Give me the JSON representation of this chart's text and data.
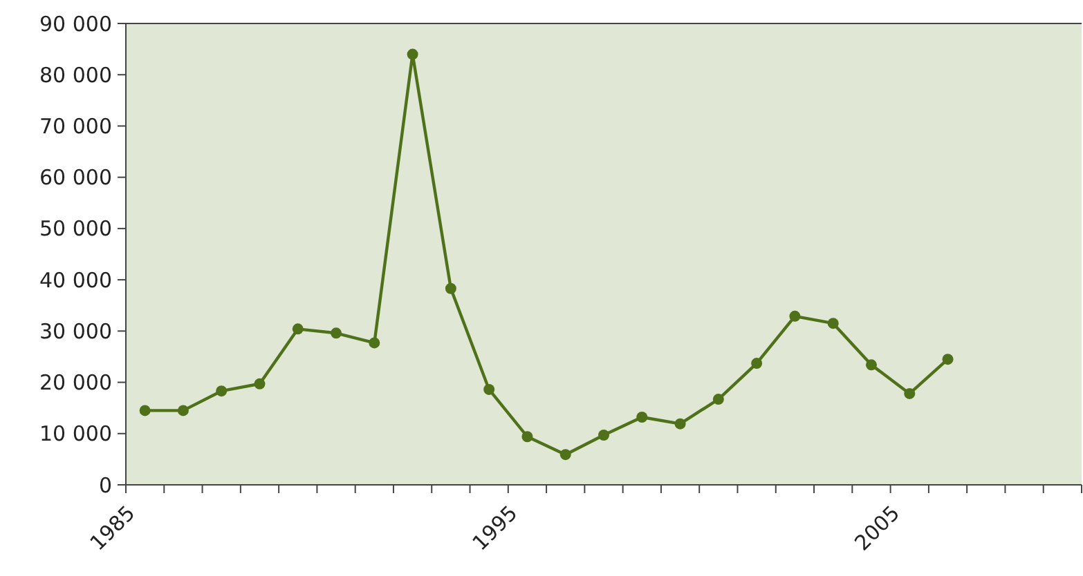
{
  "chart_data": {
    "type": "line",
    "x": [
      1985.5,
      1986.5,
      1987.5,
      1988.5,
      1989.5,
      1990.5,
      1991.5,
      1992.5,
      1993.5,
      1994.5,
      1995.5,
      1996.5,
      1997.5,
      1998.5,
      1999.5,
      2000.5,
      2001.5,
      2002.5,
      2003.5,
      2004.5,
      2005.5,
      2006.5
    ],
    "series": [
      {
        "color": "#4e7119",
        "values": [
          14500,
          14500,
          18300,
          19700,
          30400,
          29600,
          27700,
          84000,
          38300,
          18600,
          9400,
          5900,
          9700,
          13200,
          11900,
          16700,
          23700,
          32900,
          31500,
          23400,
          17800,
          24500
        ]
      }
    ],
    "xlim": [
      1985,
      2010
    ],
    "xticks": [
      1985,
      {
        "value": 1986,
        "label": null
      },
      {
        "value": 1987,
        "label": null
      },
      {
        "value": 1988,
        "label": null
      },
      {
        "value": 1989,
        "label": null
      },
      {
        "value": 1990,
        "label": null
      },
      {
        "value": 1991,
        "label": null
      },
      {
        "value": 1992,
        "label": null
      },
      {
        "value": 1993,
        "label": null
      },
      {
        "value": 1994,
        "label": null
      },
      1995,
      {
        "value": 1996,
        "label": null
      },
      {
        "value": 1997,
        "label": null
      },
      {
        "value": 1998,
        "label": null
      },
      {
        "value": 1999,
        "label": null
      },
      {
        "value": 2000,
        "label": null
      },
      {
        "value": 2001,
        "label": null
      },
      {
        "value": 2002,
        "label": null
      },
      {
        "value": 2003,
        "label": null
      },
      {
        "value": 2004,
        "label": null
      },
      2005,
      {
        "value": 2006,
        "label": null
      },
      {
        "value": 2007,
        "label": null
      },
      {
        "value": 2008,
        "label": null
      },
      {
        "value": 2009,
        "label": null
      },
      {
        "value": 2010,
        "label": null
      }
    ],
    "ylim": [
      0,
      90000
    ],
    "yticks": [
      0,
      {
        "value": 10000,
        "label": "10 000"
      },
      {
        "value": 20000,
        "label": "20 000"
      },
      {
        "value": 30000,
        "label": "30 000"
      },
      {
        "value": 40000,
        "label": "40 000"
      },
      {
        "value": 50000,
        "label": "50 000"
      },
      {
        "value": 60000,
        "label": "60 000"
      },
      {
        "value": 70000,
        "label": "70 000"
      },
      {
        "value": 80000,
        "label": "80 000"
      },
      {
        "value": 90000,
        "label": "90 000"
      }
    ],
    "marker": "circle",
    "line_style": "solid",
    "grid": false
  }
}
